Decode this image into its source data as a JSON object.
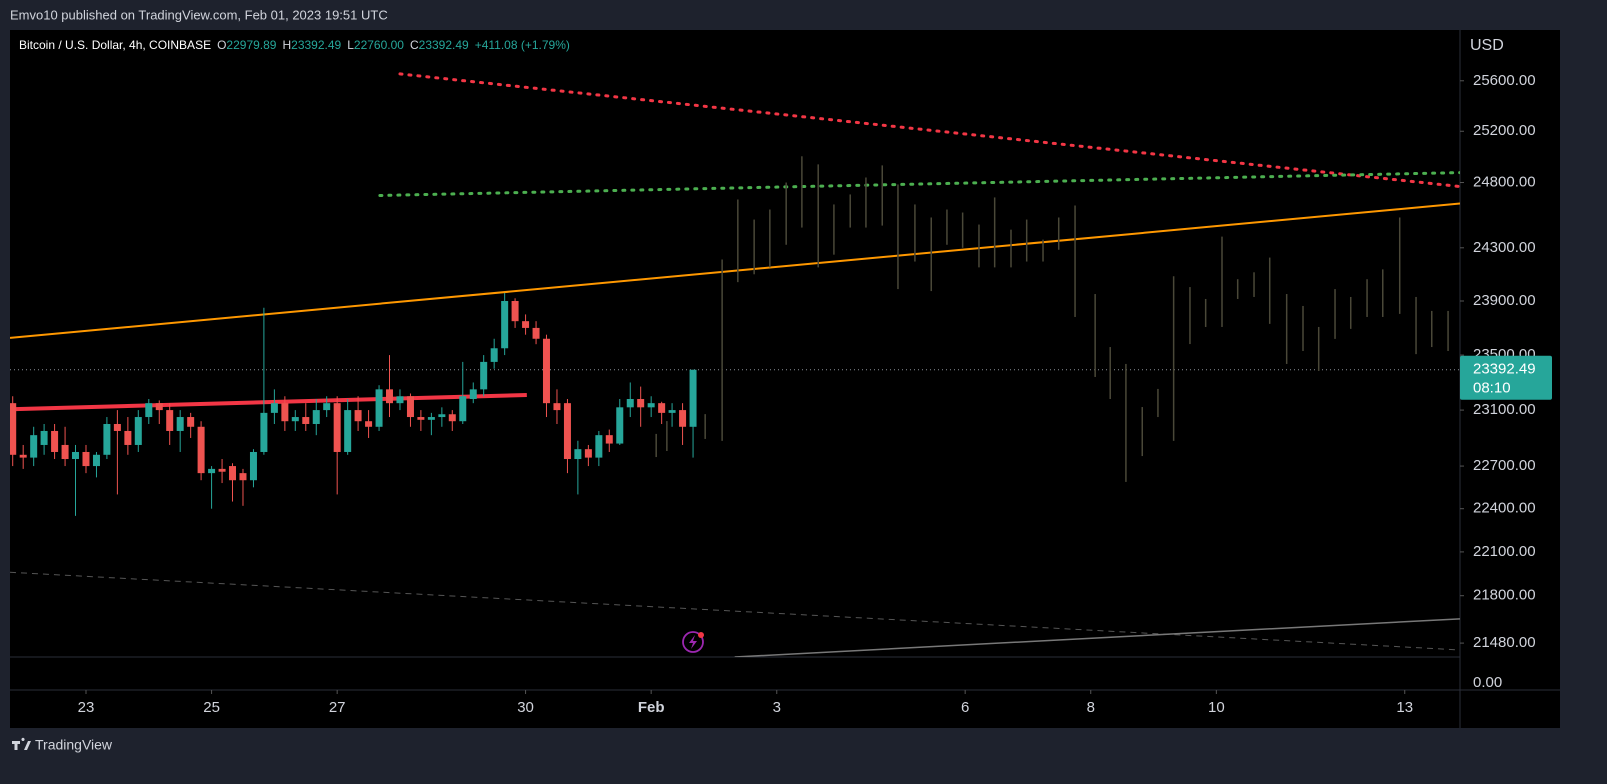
{
  "header": {
    "attribution": "Emvo10 published on TradingView.com, Feb 01, 2023 19:51 UTC",
    "brand": "TradingView"
  },
  "chart_data": {
    "type": "candlestick",
    "title": "Bitcoin / U.S. Dollar, 4h, COINBASE",
    "legend": [
      {
        "key": "O",
        "value": "22979.89"
      },
      {
        "key": "H",
        "value": "23392.49"
      },
      {
        "key": "L",
        "value": "22760.00"
      },
      {
        "key": "C",
        "value": "23392.49"
      }
    ],
    "change": "+411.08 (+1.79%)",
    "currency": "USD",
    "log_scale": true,
    "ylim": [
      21387,
      26009
    ],
    "yticks": [
      {
        "value": 25600,
        "label": "25600.00"
      },
      {
        "value": 25200,
        "label": "25200.00"
      },
      {
        "value": 24800,
        "label": "24800.00"
      },
      {
        "value": 24300,
        "label": "24300.00"
      },
      {
        "value": 23900,
        "label": "23900.00"
      },
      {
        "value": 23500,
        "label": "23500.00"
      },
      {
        "value": 23100,
        "label": "23100.00"
      },
      {
        "value": 22700,
        "label": "22700.00"
      },
      {
        "value": 22400,
        "label": "22400.00"
      },
      {
        "value": 22100,
        "label": "22100.00"
      },
      {
        "value": 21800,
        "label": "21800.00"
      },
      {
        "value": 21480,
        "label": "21480.00"
      }
    ],
    "xlim": [
      21.79,
      44.88
    ],
    "xticks": [
      23,
      25,
      27,
      30,
      {
        "value": 32,
        "label": "Feb"
      },
      {
        "value": 34,
        "label": "3"
      },
      {
        "value": 37,
        "label": "6"
      },
      {
        "value": 39,
        "label": "8"
      },
      {
        "value": 41,
        "label": "10"
      },
      {
        "value": 44,
        "label": "13"
      }
    ],
    "x": [
      21.833,
      22.0,
      22.167,
      22.333,
      22.5,
      22.667,
      22.833,
      23.0,
      23.167,
      23.333,
      23.5,
      23.667,
      23.833,
      24.0,
      24.167,
      24.333,
      24.5,
      24.667,
      24.833,
      25.0,
      25.167,
      25.333,
      25.5,
      25.667,
      25.833,
      26.0,
      26.167,
      26.333,
      26.5,
      26.667,
      26.833,
      27.0,
      27.167,
      27.333,
      27.5,
      27.667,
      27.833,
      28.0,
      28.167,
      28.333,
      28.5,
      28.667,
      28.833,
      29.0,
      29.167,
      29.333,
      29.5,
      29.667,
      29.833,
      30.0,
      30.167,
      30.333,
      30.5,
      30.667,
      30.833,
      31.0,
      31.167,
      31.333,
      31.5,
      31.667,
      31.833,
      32.0,
      32.167,
      32.333,
      32.5,
      32.667
    ],
    "open": [
      23150,
      22780,
      22760,
      22850,
      22950,
      22850,
      22750,
      22800,
      22700,
      22780,
      23000,
      22950,
      22850,
      23050,
      23150,
      23100,
      22950,
      23050,
      22980,
      22650,
      22680,
      22700,
      22650,
      22600,
      22800,
      23080,
      23150,
      23020,
      23050,
      23000,
      23100,
      23150,
      22800,
      23100,
      23020,
      22980,
      23250,
      23150,
      23200,
      23050,
      23030,
      23050,
      23070,
      23020,
      23180,
      23250,
      23450,
      23550,
      23900,
      23750,
      23700,
      23620,
      23150,
      23150,
      22750,
      22820,
      22760,
      22920,
      22860,
      23120,
      23180,
      23120,
      23150,
      23080,
      23100,
      22979.89
    ],
    "high": [
      23200,
      22850,
      22980,
      23000,
      23000,
      22980,
      22850,
      22850,
      22800,
      23050,
      23100,
      23050,
      23100,
      23180,
      23170,
      23150,
      23100,
      23080,
      23020,
      22700,
      22750,
      22720,
      22680,
      22820,
      23850,
      23250,
      23200,
      23100,
      23150,
      23180,
      23200,
      23200,
      23180,
      23200,
      23100,
      23280,
      23500,
      23250,
      23220,
      23100,
      23080,
      23120,
      23100,
      23450,
      23300,
      23500,
      23620,
      23960,
      23920,
      23800,
      23750,
      23650,
      23250,
      23180,
      22880,
      22850,
      22950,
      22960,
      23180,
      23300,
      23270,
      23200,
      23160,
      23150,
      23150,
      23392.49
    ],
    "low": [
      22700,
      22680,
      22700,
      22780,
      22750,
      22700,
      22350,
      22650,
      22620,
      22750,
      22500,
      22780,
      22800,
      23000,
      23000,
      22850,
      22800,
      22900,
      22600,
      22400,
      22580,
      22450,
      22420,
      22550,
      22780,
      23000,
      22950,
      22950,
      22950,
      22920,
      23050,
      22500,
      22780,
      22950,
      22900,
      22950,
      23050,
      23100,
      22980,
      22950,
      22920,
      22980,
      22950,
      23000,
      23150,
      23200,
      23400,
      23500,
      23700,
      23650,
      23580,
      23050,
      23000,
      22650,
      22500,
      22700,
      22700,
      22800,
      22850,
      23050,
      22980,
      23050,
      23000,
      22980,
      22850,
      22760
    ],
    "close": [
      22780,
      22760,
      22920,
      22950,
      22800,
      22750,
      22800,
      22700,
      22780,
      23000,
      22950,
      22850,
      23050,
      23150,
      23100,
      22950,
      23050,
      22980,
      22650,
      22680,
      22660,
      22600,
      22600,
      22800,
      23080,
      23150,
      23020,
      23050,
      23000,
      23100,
      23150,
      22800,
      23100,
      23020,
      22980,
      23250,
      23150,
      23200,
      23050,
      23030,
      23050,
      23070,
      23020,
      23200,
      23250,
      23450,
      23550,
      23900,
      23750,
      23700,
      23620,
      23150,
      23100,
      22750,
      22820,
      22760,
      22920,
      22860,
      23120,
      23180,
      23120,
      23150,
      23080,
      23100,
      22980,
      23392.49
    ],
    "up_color": "#26a69a",
    "down_color": "#ef5350",
    "projection": {
      "color": "#4a4838",
      "x": [
        32.08,
        32.25,
        32.86,
        33.13,
        33.38,
        33.64,
        33.89,
        34.15,
        34.4,
        34.66,
        34.91,
        35.17,
        35.42,
        35.68,
        35.93,
        36.2,
        36.46,
        36.71,
        36.96,
        37.22,
        37.47,
        37.73,
        37.98,
        38.24,
        38.49,
        38.75,
        39.07,
        39.31,
        39.56,
        39.82,
        40.07,
        40.32,
        40.58,
        40.83,
        41.09,
        41.34,
        41.6,
        41.85,
        42.12,
        42.38,
        42.63,
        42.89,
        43.14,
        43.4,
        43.65,
        43.92,
        44.18,
        44.43,
        44.69
      ],
      "high": [
        22929,
        23021,
        23071,
        24211,
        24669,
        24515,
        24592,
        24800,
        25004,
        24941,
        24631,
        24708,
        24839,
        24933,
        24785,
        24631,
        24531,
        24592,
        24569,
        24477,
        24685,
        24438,
        24515,
        24362,
        24531,
        24623,
        23952,
        23559,
        23435,
        23122,
        23253,
        24085,
        24004,
        23915,
        24385,
        24063,
        24115,
        24226,
        23952,
        23863,
        23707,
        23989,
        23930,
        24063,
        24137,
        24531,
        23930,
        23826,
        23826
      ],
      "low": [
        22764,
        22807,
        22893,
        22879,
        24041,
        24100,
        24152,
        24323,
        24454,
        24152,
        24248,
        24454,
        24454,
        24469,
        23989,
        24196,
        23974,
        24323,
        24300,
        24152,
        24152,
        24152,
        24196,
        24196,
        24285,
        23781,
        23340,
        23180,
        22588,
        22771,
        23050,
        22879,
        23581,
        23707,
        23707,
        23915,
        23930,
        23730,
        23435,
        23530,
        23384,
        23619,
        23693,
        23781,
        23781,
        23804,
        23507,
        23559,
        23530
      ]
    },
    "last_price": {
      "value": 23392.49,
      "label": "23392.49",
      "countdown": "08:10",
      "color": "#26a69a"
    },
    "drawings": [
      {
        "color": "#ff9800",
        "style": "solid",
        "width": 2,
        "points": [
          [
            21.79,
            23626
          ],
          [
            44.88,
            24638
          ]
        ]
      },
      {
        "color": "#f23645",
        "style": "solid",
        "width": 4,
        "points": [
          [
            21.87,
            23107
          ],
          [
            30.02,
            23209
          ]
        ]
      },
      {
        "color": "#f23645",
        "style": "dotted",
        "width": 3,
        "points": [
          [
            28.0,
            25655
          ],
          [
            44.88,
            24769
          ]
        ]
      },
      {
        "color": "#4caf50",
        "style": "dotted",
        "width": 3,
        "points": [
          [
            27.68,
            24700
          ],
          [
            44.88,
            24877
          ]
        ]
      },
      {
        "color": "#555555",
        "style": "dashed",
        "width": 1,
        "points": [
          [
            21.79,
            21960
          ],
          [
            44.88,
            21434
          ]
        ]
      },
      {
        "color": "#787878",
        "style": "solid",
        "width": 1.5,
        "points": [
          [
            33.33,
            21387
          ],
          [
            44.88,
            21643
          ]
        ]
      }
    ],
    "lower_pane": {
      "yticks": [
        {
          "value": 0,
          "label": "0.00"
        }
      ]
    }
  }
}
